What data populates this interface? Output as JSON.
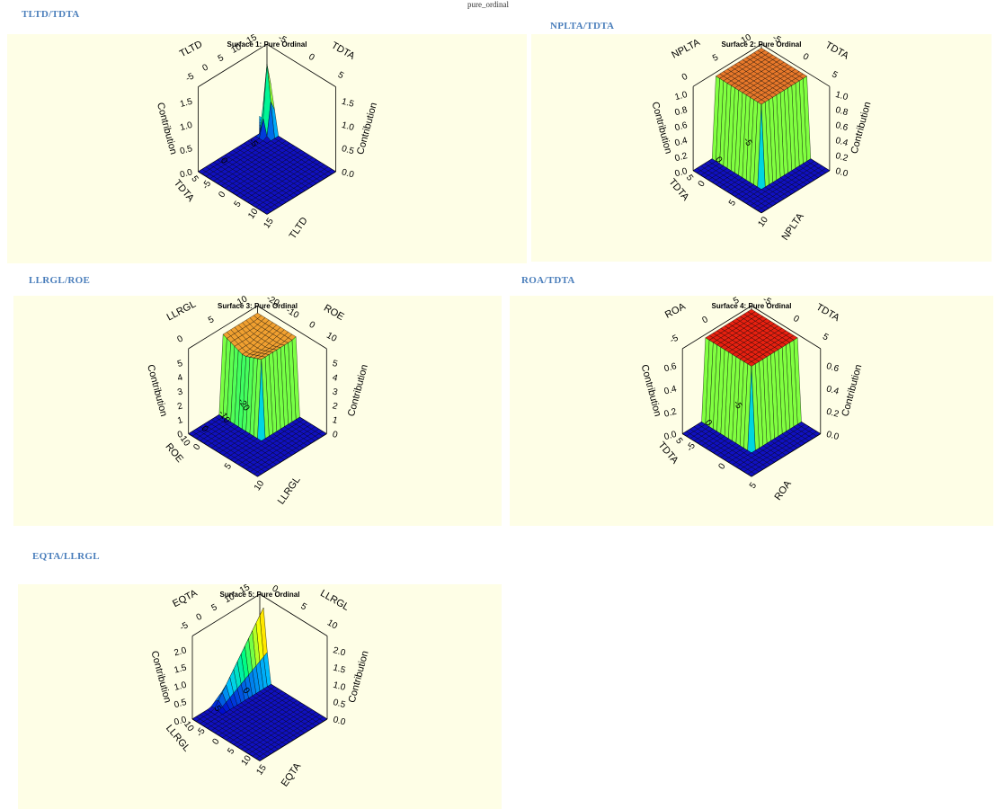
{
  "page": {
    "header_text": "pure_ordinal"
  },
  "chart_data": [
    {
      "type": "surface3d",
      "section_label": "TLTD/TDTA",
      "title": "Surface 1: Pure Ordinal",
      "ylabel_left": "TLTD",
      "ylabel_right": "TDTA",
      "xlabel_left": "TDTA",
      "xlabel_right": "TLTD",
      "zlabel": "Contribution",
      "x_ticks": [
        "-5",
        "0",
        "5",
        "10",
        "15"
      ],
      "y_ticks": [
        "-5",
        "0",
        "5"
      ],
      "z_ticks": [
        "0.0",
        "0.5",
        "1.0",
        "1.5"
      ],
      "zlim": [
        0,
        1.8
      ],
      "surface": "spike",
      "max_contribution": 1.8,
      "colors": [
        "#0000cc",
        "#00c8ff",
        "#00ff80",
        "#ffff00",
        "#ff8c00",
        "#ff2000"
      ]
    },
    {
      "type": "surface3d",
      "section_label": "NPLTA/TDTA",
      "title": "Surface 2: Pure Ordinal",
      "ylabel_left": "NPLTA",
      "ylabel_right": "TDTA",
      "xlabel_left": "TDTA",
      "xlabel_right": "NPLTA",
      "zlabel": "Contribution",
      "x_ticks": [
        "0",
        "5",
        "10"
      ],
      "y_ticks": [
        "-5",
        "0",
        "5"
      ],
      "z_ticks": [
        "0.0",
        "0.2",
        "0.4",
        "0.6",
        "0.8",
        "1.0"
      ],
      "zlim": [
        0,
        1.1
      ],
      "surface": "plateau",
      "max_contribution": 1.05,
      "top_color": "#e8782a",
      "colors": [
        "#0000cc",
        "#00c8ff",
        "#00ff80",
        "#ffff00",
        "#ff8c00",
        "#ff2000"
      ]
    },
    {
      "type": "surface3d",
      "section_label": "LLRGL/ROE",
      "title": "Surface 3: Pure Ordinal",
      "ylabel_left": "LLRGL",
      "ylabel_right": "ROE",
      "xlabel_left": "ROE",
      "xlabel_right": "LLRGL",
      "zlabel": "Contribution",
      "x_ticks": [
        "0",
        "5",
        "10"
      ],
      "y_ticks": [
        "-20",
        "-10",
        "0",
        "10"
      ],
      "z_ticks": [
        "0",
        "1",
        "2",
        "3",
        "4",
        "5"
      ],
      "zlim": [
        0,
        6
      ],
      "surface": "saddle",
      "max_contribution": 5.5,
      "top_color": "#f0a030",
      "colors": [
        "#0000cc",
        "#00c8ff",
        "#00ff80",
        "#ffff00",
        "#ff8c00",
        "#ff2000"
      ]
    },
    {
      "type": "surface3d",
      "section_label": "ROA/TDTA",
      "title": "Surface 4: Pure Ordinal",
      "ylabel_left": "ROA",
      "ylabel_right": "TDTA",
      "xlabel_left": "TDTA",
      "xlabel_right": "ROA",
      "zlabel": "Contribution",
      "x_ticks": [
        "-5",
        "0",
        "5"
      ],
      "y_ticks": [
        "-5",
        "0",
        "5"
      ],
      "z_ticks": [
        "0.0",
        "0.2",
        "0.4",
        "0.6"
      ],
      "zlim": [
        0,
        0.75
      ],
      "surface": "plateau",
      "max_contribution": 0.72,
      "top_color": "#e82010",
      "colors": [
        "#0000cc",
        "#00c8ff",
        "#00ff80",
        "#ffff00",
        "#ff8c00",
        "#ff2000"
      ]
    },
    {
      "type": "surface3d",
      "section_label": "EQTA/LLRGL",
      "title": "Surface 5: Pure Ordinal",
      "ylabel_left": "EQTA",
      "ylabel_right": "LLRGL",
      "xlabel_left": "LLRGL",
      "xlabel_right": "EQTA",
      "zlabel": "Contribution",
      "x_ticks": [
        "-5",
        "0",
        "5",
        "10",
        "15"
      ],
      "y_ticks": [
        "0",
        "5",
        "10"
      ],
      "z_ticks": [
        "0.0",
        "0.5",
        "1.0",
        "1.5",
        "2.0"
      ],
      "zlim": [
        0,
        2.4
      ],
      "surface": "ridge",
      "max_contribution": 2.2,
      "colors": [
        "#0000cc",
        "#00c8ff",
        "#00ff80",
        "#ffff00",
        "#ff8c00",
        "#ff2000"
      ]
    }
  ]
}
